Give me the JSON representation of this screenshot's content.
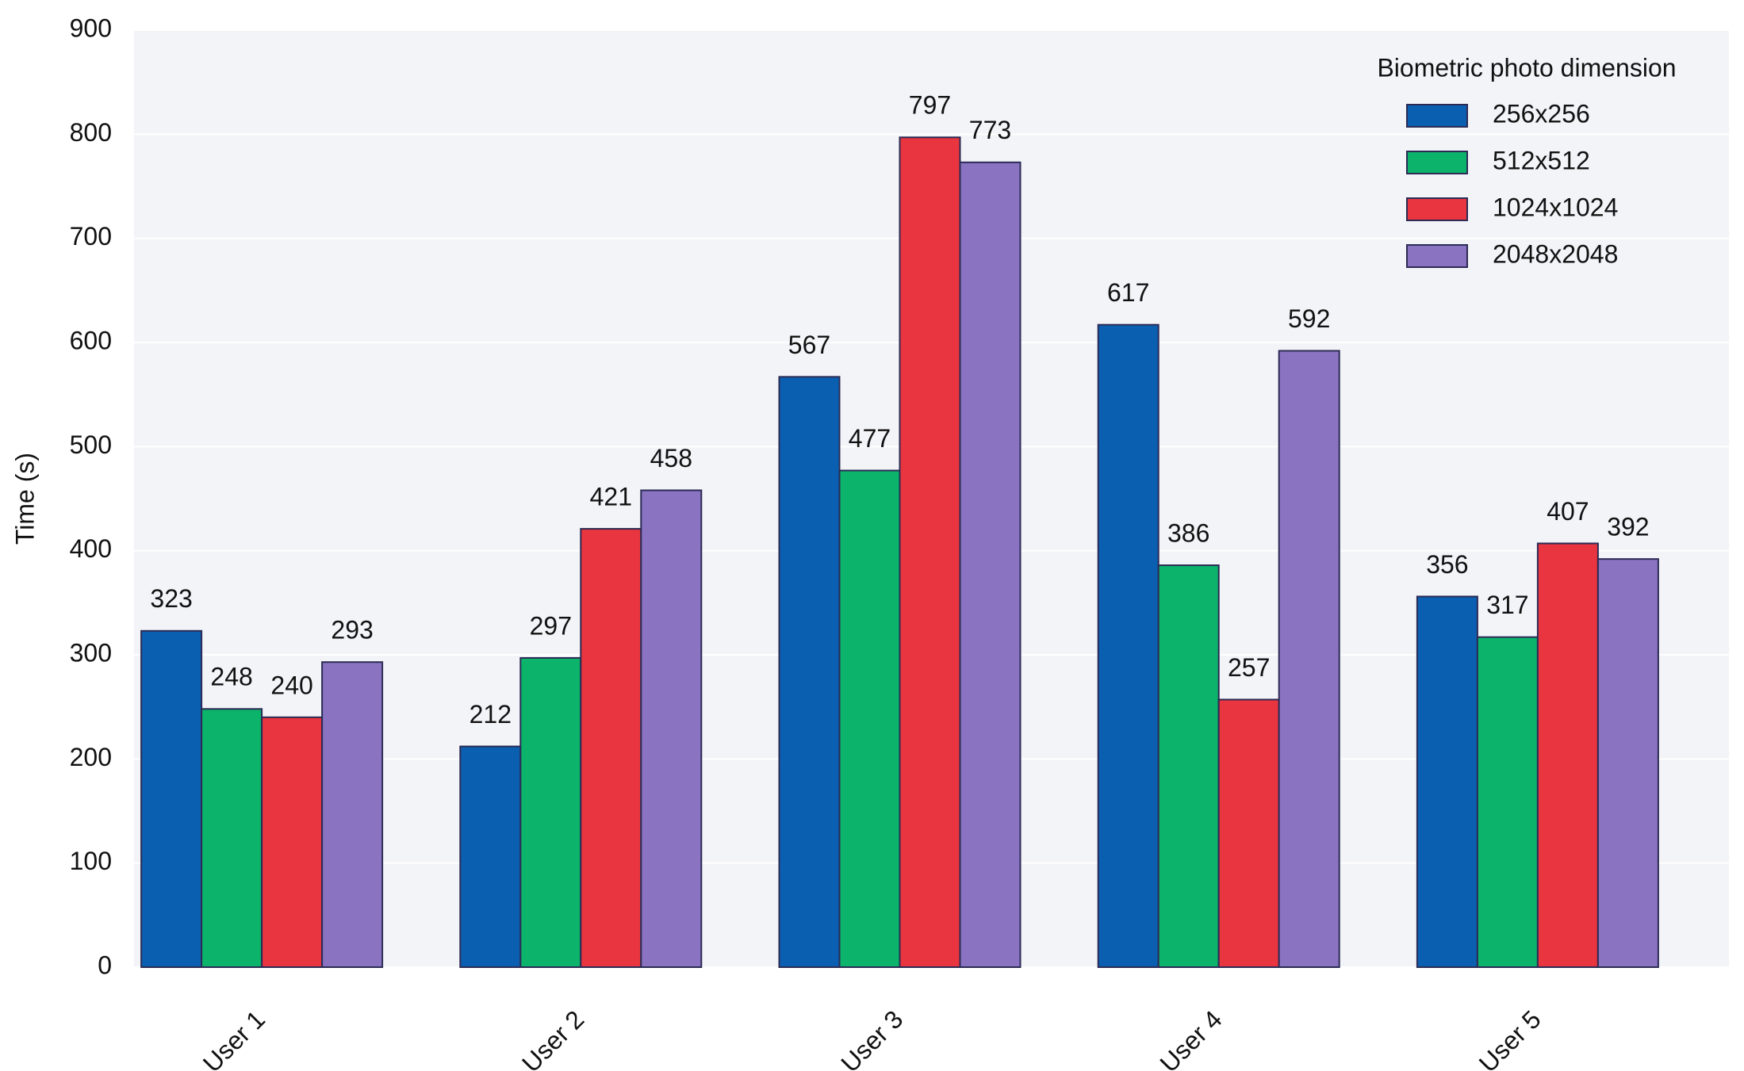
{
  "chart_data": {
    "type": "bar",
    "y_label": "Time (s)",
    "legend_title": "Biometric photo dimension",
    "legend_position": "upper right",
    "categories": [
      "User 1",
      "User 2",
      "User 3",
      "User 4",
      "User 5"
    ],
    "series": [
      {
        "name": "256x256",
        "color": "#0b5fb0",
        "values": [
          323,
          212,
          567,
          617,
          356
        ]
      },
      {
        "name": "512x512",
        "color": "#0bb36b",
        "values": [
          248,
          297,
          477,
          386,
          317
        ]
      },
      {
        "name": "1024x1024",
        "color": "#e8353f",
        "values": [
          240,
          421,
          797,
          257,
          407
        ]
      },
      {
        "name": "2048x2048",
        "color": "#8a73c0",
        "values": [
          293,
          458,
          773,
          592,
          392
        ]
      }
    ],
    "ylim": [
      0,
      900
    ],
    "yticks": [
      0,
      100,
      200,
      300,
      400,
      500,
      600,
      700,
      800,
      900
    ],
    "grid": true
  }
}
